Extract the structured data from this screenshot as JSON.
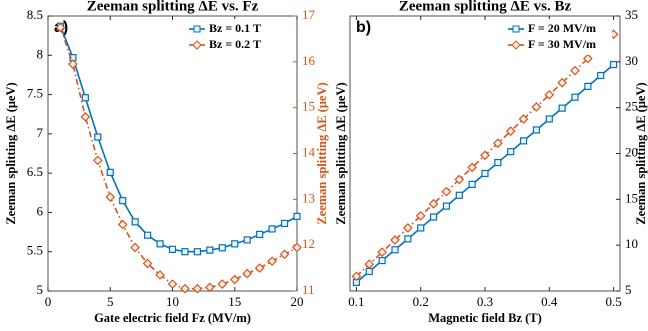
{
  "chart_data": [
    {
      "type": "line",
      "title": "Zeeman splitting ΔE vs. Fz",
      "annotation": "a)",
      "xlabel": "Gate electric field Fz (MV/m)",
      "ylabel": "Zeeman splitting ΔE (μeV)",
      "y2label": "Zeeman splitting ΔE (μeV)",
      "xlim": [
        0,
        20
      ],
      "xticks": [
        0,
        5,
        10,
        15,
        20
      ],
      "ylim": [
        5,
        8.5
      ],
      "yticks": [
        5,
        5.5,
        6,
        6.5,
        7,
        7.5,
        8,
        8.5
      ],
      "y2lim": [
        11,
        17
      ],
      "y2ticks": [
        11,
        12,
        13,
        14,
        15,
        16,
        17
      ],
      "legend": "upper right",
      "ytick_side": "left",
      "x": [
        1,
        2,
        3,
        4,
        5,
        6,
        7,
        8,
        9,
        10,
        11,
        12,
        13,
        14,
        15,
        16,
        17,
        18,
        19,
        20
      ],
      "series": [
        {
          "name": "Bz = 0.1 T",
          "color": "#0072bd",
          "marker": "square",
          "axis": "y",
          "values": [
            8.37,
            7.97,
            7.46,
            6.96,
            6.51,
            6.15,
            5.88,
            5.71,
            5.6,
            5.53,
            5.5,
            5.5,
            5.52,
            5.55,
            5.6,
            5.65,
            5.72,
            5.79,
            5.86,
            5.95
          ]
        },
        {
          "name": "Bz = 0.2 T",
          "color": "#d95319",
          "marker": "diamond",
          "axis": "y2",
          "values": [
            16.75,
            15.95,
            14.8,
            13.85,
            13.05,
            12.45,
            11.95,
            11.6,
            11.35,
            11.15,
            11.05,
            11.05,
            11.08,
            11.15,
            11.25,
            11.38,
            11.5,
            11.65,
            11.8,
            11.95
          ]
        }
      ]
    },
    {
      "type": "line",
      "title": "Zeeman splitting ΔE vs. Bz",
      "annotation": "b)",
      "xlabel": "Magnetic field Bz (T)",
      "ylabel": "Zeeman splitting ΔE (μeV)",
      "y2label": "Zeeman splitting ΔE (μeV)",
      "xlim": [
        0.09,
        0.51
      ],
      "xticks": [
        0.1,
        0.2,
        0.3,
        0.4,
        0.5
      ],
      "ylim": [
        5,
        35
      ],
      "yticks": [
        5,
        10,
        15,
        20,
        25,
        30,
        35
      ],
      "legend": "upper left",
      "ytick_side": "right",
      "x": [
        0.1,
        0.12,
        0.14,
        0.16,
        0.18,
        0.2,
        0.22,
        0.24,
        0.26,
        0.28,
        0.3,
        0.32,
        0.34,
        0.36,
        0.38,
        0.4,
        0.42,
        0.44,
        0.46,
        0.48,
        0.5
      ],
      "series": [
        {
          "name": "F = 20 MV/m",
          "color": "#0072bd",
          "marker": "square",
          "axis": "y",
          "values": [
            5.94,
            7.13,
            8.32,
            9.5,
            10.69,
            11.88,
            13.07,
            14.26,
            15.44,
            16.63,
            17.82,
            19.01,
            20.2,
            21.38,
            22.57,
            23.76,
            24.95,
            26.14,
            27.32,
            28.51,
            29.7
          ]
        },
        {
          "name": "F = 30 MV/m",
          "color": "#d95319",
          "marker": "diamond",
          "axis": "y",
          "values": [
            6.6,
            7.92,
            9.24,
            10.56,
            11.88,
            13.2,
            14.52,
            15.84,
            17.16,
            18.48,
            19.8,
            21.12,
            22.44,
            23.76,
            25.08,
            26.4,
            27.72,
            29.04,
            30.36,
            31.68,
            33.0
          ]
        }
      ]
    }
  ]
}
